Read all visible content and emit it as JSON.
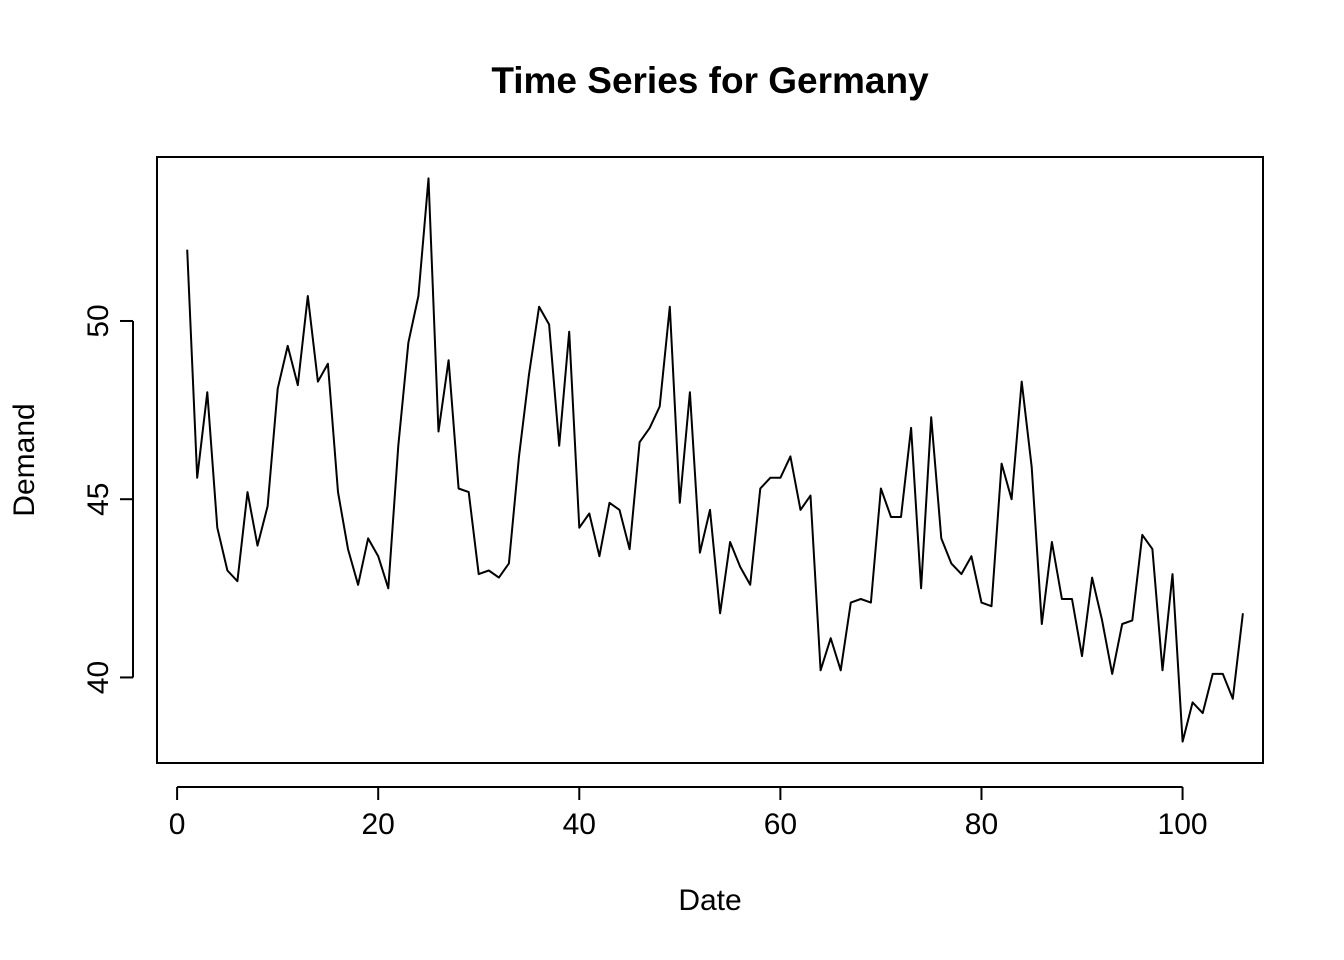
{
  "chart_data": {
    "type": "line",
    "title": "Time Series for Germany",
    "xlabel": "Date",
    "ylabel": "Demand",
    "xlim": [
      -2.0,
      108.0
    ],
    "ylim": [
      37.6,
      54.6
    ],
    "xticks": [
      0,
      20,
      40,
      60,
      80,
      100
    ],
    "yticks": [
      40,
      45,
      50
    ],
    "grid": false,
    "legend": "none",
    "line_color": "#000000",
    "series": [
      {
        "x": [
          1,
          2,
          3,
          4,
          5,
          6,
          7,
          8,
          9,
          10,
          11,
          12,
          13,
          14,
          15,
          16,
          17,
          18,
          19,
          20,
          21,
          22,
          23,
          24,
          25,
          26,
          27,
          28,
          29,
          30,
          31,
          32,
          33,
          34,
          35,
          36,
          37,
          38,
          39,
          40,
          41,
          42,
          43,
          44,
          45,
          46,
          47,
          48,
          49,
          50,
          51,
          52,
          53,
          54,
          55,
          56,
          57,
          58,
          59,
          60,
          61,
          62,
          63,
          64,
          65,
          66,
          67,
          68,
          69,
          70,
          71,
          72,
          73,
          74,
          75,
          76,
          77,
          78,
          79,
          80,
          81,
          82,
          83,
          84,
          85,
          86,
          87,
          88,
          89,
          90,
          91,
          92,
          93,
          94,
          95,
          96,
          97,
          98,
          99,
          100,
          101,
          102,
          103,
          104,
          105,
          106
        ],
        "values": [
          52.0,
          45.6,
          48.0,
          44.2,
          43.0,
          42.7,
          45.2,
          43.7,
          44.8,
          48.1,
          49.3,
          48.2,
          50.7,
          48.3,
          48.8,
          45.2,
          43.6,
          42.6,
          43.9,
          43.4,
          42.5,
          46.5,
          49.4,
          50.7,
          54.0,
          46.9,
          48.9,
          45.3,
          45.2,
          42.9,
          43.0,
          42.8,
          43.2,
          46.2,
          48.5,
          50.4,
          49.9,
          46.5,
          49.7,
          44.2,
          44.6,
          43.4,
          44.9,
          44.7,
          43.6,
          46.6,
          47.0,
          47.6,
          50.4,
          44.9,
          48.0,
          43.5,
          44.7,
          41.8,
          43.8,
          43.1,
          42.6,
          45.3,
          45.6,
          45.6,
          46.2,
          44.7,
          45.1,
          40.2,
          41.1,
          40.2,
          42.1,
          42.2,
          42.1,
          45.3,
          44.5,
          44.5,
          47.0,
          42.5,
          47.3,
          43.9,
          43.2,
          42.9,
          43.4,
          42.1,
          42.0,
          46.0,
          45.0,
          48.3,
          45.9,
          41.5,
          43.8,
          42.2,
          42.2,
          40.6,
          42.8,
          41.6,
          40.1,
          41.5,
          41.6,
          44.0,
          43.6,
          40.2,
          42.9,
          38.2,
          39.3,
          39.0,
          40.1,
          40.1,
          39.4,
          41.8
        ]
      }
    ]
  }
}
